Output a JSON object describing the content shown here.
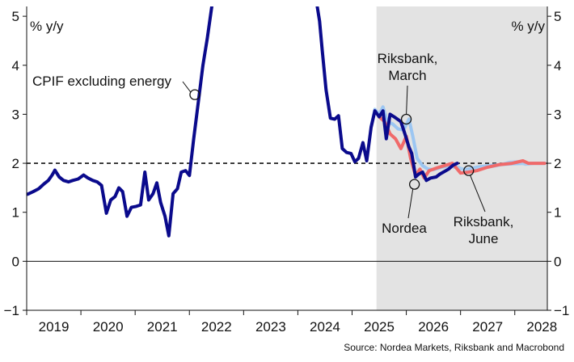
{
  "chart_data": {
    "type": "line",
    "units_left": "% y/y",
    "units_right": "% y/y",
    "source": "Source: Nordea Markets, Riksbank and Macrobond",
    "x_ticks": [
      "2019",
      "2020",
      "2021",
      "2022",
      "2023",
      "2024",
      "2025",
      "2026",
      "2027",
      "2028"
    ],
    "y_ticks": [
      "5",
      "4",
      "3",
      "2",
      "1",
      "0",
      "-1"
    ],
    "ylim": [
      -1,
      5.2
    ],
    "xlim": [
      2018.5,
      2028.1
    ],
    "forecast_shading_from": 2024.95,
    "reference_line": 2,
    "colors": {
      "cpif": "#0a0a8c",
      "nordea": "#f06a6a",
      "riksbank_march": "#9cc6f2",
      "riksbank_june": "#a9cdf0",
      "shade": "#e3e3e3"
    },
    "annotations": [
      {
        "text": "CPIF excluding energy",
        "point": [
          2021.6,
          3.4
        ]
      },
      {
        "lines": [
          "Riksbank,",
          "March"
        ],
        "point": [
          2025.5,
          2.9
        ]
      },
      {
        "lines": [
          "Nordea"
        ],
        "point": [
          2025.65,
          1.57
        ]
      },
      {
        "lines": [
          "Riksbank,",
          "June"
        ],
        "point": [
          2026.65,
          1.85
        ]
      }
    ],
    "series": [
      {
        "name": "CPIF excluding energy",
        "points": [
          [
            2018.52,
            1.37
          ],
          [
            2018.62,
            1.42
          ],
          [
            2018.72,
            1.48
          ],
          [
            2018.82,
            1.58
          ],
          [
            2018.9,
            1.65
          ],
          [
            2018.97,
            1.76
          ],
          [
            2019.02,
            1.86
          ],
          [
            2019.1,
            1.72
          ],
          [
            2019.18,
            1.65
          ],
          [
            2019.27,
            1.62
          ],
          [
            2019.35,
            1.65
          ],
          [
            2019.45,
            1.68
          ],
          [
            2019.55,
            1.76
          ],
          [
            2019.63,
            1.7
          ],
          [
            2019.72,
            1.65
          ],
          [
            2019.8,
            1.62
          ],
          [
            2019.88,
            1.55
          ],
          [
            2019.97,
            0.98
          ],
          [
            2020.05,
            1.25
          ],
          [
            2020.13,
            1.32
          ],
          [
            2020.2,
            1.5
          ],
          [
            2020.27,
            1.42
          ],
          [
            2020.35,
            0.92
          ],
          [
            2020.43,
            1.1
          ],
          [
            2020.52,
            1.12
          ],
          [
            2020.6,
            1.15
          ],
          [
            2020.68,
            1.82
          ],
          [
            2020.75,
            1.25
          ],
          [
            2020.83,
            1.38
          ],
          [
            2020.9,
            1.6
          ],
          [
            2020.97,
            1.2
          ],
          [
            2021.05,
            0.92
          ],
          [
            2021.12,
            0.52
          ],
          [
            2021.2,
            1.38
          ],
          [
            2021.28,
            1.48
          ],
          [
            2021.35,
            1.82
          ],
          [
            2021.43,
            1.85
          ],
          [
            2021.5,
            1.75
          ],
          [
            2021.58,
            2.5
          ],
          [
            2021.67,
            3.3
          ],
          [
            2021.75,
            4.0
          ],
          [
            2021.83,
            4.55
          ],
          [
            2021.92,
            5.25
          ],
          [
            2023.85,
            5.25
          ],
          [
            2023.9,
            4.9
          ],
          [
            2023.95,
            4.3
          ],
          [
            2024.02,
            3.5
          ],
          [
            2024.1,
            2.92
          ],
          [
            2024.18,
            2.9
          ],
          [
            2024.25,
            2.97
          ],
          [
            2024.32,
            2.3
          ],
          [
            2024.4,
            2.22
          ],
          [
            2024.48,
            2.2
          ],
          [
            2024.55,
            2.03
          ],
          [
            2024.62,
            2.1
          ],
          [
            2024.7,
            2.42
          ],
          [
            2024.77,
            2.05
          ],
          [
            2024.85,
            2.73
          ],
          [
            2024.92,
            3.07
          ],
          [
            2025.0,
            2.95
          ],
          [
            2025.07,
            3.07
          ],
          [
            2025.13,
            2.5
          ],
          [
            2025.2,
            3.0
          ],
          [
            2025.3,
            2.93
          ],
          [
            2025.4,
            2.85
          ],
          [
            2025.48,
            2.58
          ],
          [
            2025.55,
            2.33
          ],
          [
            2025.6,
            2.2
          ],
          [
            2025.67,
            1.72
          ],
          [
            2025.73,
            1.78
          ],
          [
            2025.8,
            1.82
          ],
          [
            2025.87,
            1.65
          ],
          [
            2025.95,
            1.7
          ],
          [
            2026.05,
            1.72
          ],
          [
            2026.12,
            1.78
          ],
          [
            2026.2,
            1.83
          ],
          [
            2026.28,
            1.88
          ],
          [
            2026.36,
            1.96
          ],
          [
            2026.44,
            2.0
          ]
        ]
      },
      {
        "name": "Riksbank, March",
        "points": [
          [
            2024.85,
            2.75
          ],
          [
            2024.92,
            3.1
          ],
          [
            2025.0,
            3.0
          ],
          [
            2025.07,
            3.15
          ],
          [
            2025.15,
            2.85
          ],
          [
            2025.25,
            2.8
          ],
          [
            2025.35,
            2.7
          ],
          [
            2025.45,
            2.68
          ],
          [
            2025.55,
            2.9
          ],
          [
            2025.62,
            2.55
          ],
          [
            2025.7,
            2.1
          ],
          [
            2025.8,
            1.95
          ],
          [
            2025.9,
            1.88
          ],
          [
            2026.0,
            1.87
          ],
          [
            2026.15,
            1.92
          ],
          [
            2026.3,
            1.95
          ],
          [
            2026.45,
            1.9
          ],
          [
            2026.6,
            1.87
          ],
          [
            2026.8,
            1.92
          ],
          [
            2027.0,
            1.95
          ],
          [
            2027.2,
            1.97
          ],
          [
            2027.45,
            1.99
          ],
          [
            2027.7,
            2.0
          ],
          [
            2028.05,
            2.0
          ]
        ]
      },
      {
        "name": "Riksbank, June",
        "points": [
          [
            2026.45,
            1.92
          ],
          [
            2026.6,
            1.85
          ],
          [
            2026.8,
            1.88
          ],
          [
            2027.0,
            1.92
          ],
          [
            2027.2,
            1.96
          ],
          [
            2027.4,
            2.02
          ],
          [
            2027.55,
            2.03
          ],
          [
            2027.7,
            1.98
          ],
          [
            2027.85,
            2.0
          ],
          [
            2028.05,
            2.0
          ]
        ]
      },
      {
        "name": "Nordea",
        "points": [
          [
            2025.0,
            2.95
          ],
          [
            2025.1,
            2.85
          ],
          [
            2025.2,
            2.6
          ],
          [
            2025.3,
            2.5
          ],
          [
            2025.4,
            2.3
          ],
          [
            2025.5,
            2.55
          ],
          [
            2025.58,
            2.1
          ],
          [
            2025.67,
            1.75
          ],
          [
            2025.75,
            1.88
          ],
          [
            2025.83,
            1.7
          ],
          [
            2025.92,
            1.85
          ],
          [
            2026.05,
            1.9
          ],
          [
            2026.2,
            1.95
          ],
          [
            2026.35,
            2.0
          ],
          [
            2026.5,
            1.8
          ],
          [
            2026.65,
            1.82
          ],
          [
            2026.8,
            1.85
          ],
          [
            2027.0,
            1.92
          ],
          [
            2027.2,
            1.97
          ],
          [
            2027.45,
            2.0
          ],
          [
            2027.65,
            2.05
          ],
          [
            2027.75,
            2.0
          ],
          [
            2028.05,
            2.0
          ]
        ]
      }
    ]
  }
}
